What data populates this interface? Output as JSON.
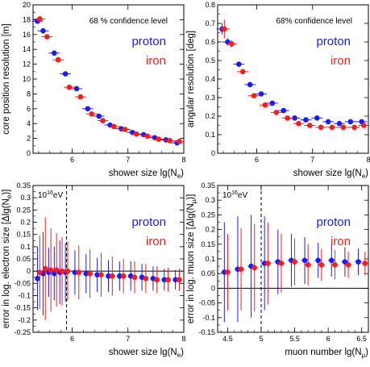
{
  "chart_data": [
    {
      "type": "scatter",
      "annotation": "68 % confidence level",
      "xlabel": "shower size  lg(N",
      "xlabel_sub": "e",
      "xlabel_close": ")",
      "ylabel": "core position resolution  [m]",
      "xlim": [
        5.3,
        8.0
      ],
      "ylim": [
        0,
        20
      ],
      "xticks": [
        6,
        7,
        8
      ],
      "xtick_labels": [
        "6",
        "7",
        "8"
      ],
      "yticks": [
        0,
        2,
        4,
        6,
        8,
        10,
        12,
        14,
        16,
        18,
        20
      ],
      "ytick_labels": [
        "0",
        "2",
        "4",
        "6",
        "8",
        "10",
        "12",
        "14",
        "16",
        "18",
        "20"
      ],
      "grid": false,
      "legend_position": "top-right",
      "series": [
        {
          "name": "proton",
          "color": "#1a1aff",
          "points": [
            {
              "x": 5.38,
              "y": 17.8,
              "xerr": 0.1,
              "yerr": 0
            },
            {
              "x": 5.48,
              "y": 16.5,
              "xerr": 0.1,
              "yerr": 0
            },
            {
              "x": 5.68,
              "y": 13.5,
              "xerr": 0.1,
              "yerr": 0
            },
            {
              "x": 5.88,
              "y": 10.7,
              "xerr": 0.1,
              "yerr": 0
            },
            {
              "x": 6.08,
              "y": 8.7,
              "xerr": 0.1,
              "yerr": 0
            },
            {
              "x": 6.28,
              "y": 6.0,
              "xerr": 0.1,
              "yerr": 0
            },
            {
              "x": 6.48,
              "y": 5.0,
              "xerr": 0.1,
              "yerr": 0
            },
            {
              "x": 6.68,
              "y": 3.8,
              "xerr": 0.1,
              "yerr": 0
            },
            {
              "x": 6.88,
              "y": 3.3,
              "xerr": 0.1,
              "yerr": 0
            },
            {
              "x": 7.08,
              "y": 2.8,
              "xerr": 0.1,
              "yerr": 0
            },
            {
              "x": 7.28,
              "y": 2.5,
              "xerr": 0.1,
              "yerr": 0
            },
            {
              "x": 7.48,
              "y": 2.1,
              "xerr": 0.1,
              "yerr": 0
            },
            {
              "x": 7.68,
              "y": 1.8,
              "xerr": 0.1,
              "yerr": 0
            },
            {
              "x": 7.88,
              "y": 1.4,
              "xerr": 0.1,
              "yerr": 0
            }
          ]
        },
        {
          "name": "iron",
          "color": "#ff1a1a",
          "points": [
            {
              "x": 5.42,
              "y": 18.1,
              "xerr": 0.1,
              "yerr": 0.3
            },
            {
              "x": 5.55,
              "y": 15.7,
              "xerr": 0.1,
              "yerr": 0
            },
            {
              "x": 5.75,
              "y": 12.6,
              "xerr": 0.1,
              "yerr": 0
            },
            {
              "x": 5.95,
              "y": 8.9,
              "xerr": 0.1,
              "yerr": 0
            },
            {
              "x": 6.15,
              "y": 7.6,
              "xerr": 0.1,
              "yerr": 0
            },
            {
              "x": 6.35,
              "y": 5.3,
              "xerr": 0.1,
              "yerr": 0
            },
            {
              "x": 6.55,
              "y": 4.4,
              "xerr": 0.1,
              "yerr": 0
            },
            {
              "x": 6.75,
              "y": 3.6,
              "xerr": 0.1,
              "yerr": 0
            },
            {
              "x": 6.95,
              "y": 3.2,
              "xerr": 0.1,
              "yerr": 0
            },
            {
              "x": 7.15,
              "y": 2.6,
              "xerr": 0.1,
              "yerr": 0
            },
            {
              "x": 7.35,
              "y": 2.3,
              "xerr": 0.1,
              "yerr": 0
            },
            {
              "x": 7.55,
              "y": 1.9,
              "xerr": 0.1,
              "yerr": 0
            },
            {
              "x": 7.75,
              "y": 1.7,
              "xerr": 0.1,
              "yerr": 0
            },
            {
              "x": 7.92,
              "y": 1.6,
              "xerr": 0.1,
              "yerr": 0
            }
          ]
        }
      ]
    },
    {
      "type": "scatter",
      "annotation": "68% confidence level",
      "xlabel": "shower size  lg(N",
      "xlabel_sub": "e",
      "xlabel_close": ")",
      "ylabel": "angular resolution  [deg]",
      "xlim": [
        5.3,
        8.0
      ],
      "ylim": [
        0,
        0.8
      ],
      "xticks": [
        6,
        7,
        8
      ],
      "xtick_labels": [
        "6",
        "7",
        "8"
      ],
      "yticks": [
        0,
        0.1,
        0.2,
        0.3,
        0.4,
        0.5,
        0.6,
        0.7,
        0.8
      ],
      "ytick_labels": [
        "0",
        "0.1",
        "0.2",
        "0.3",
        "0.4",
        "0.5",
        "0.6",
        "0.7",
        "0.8"
      ],
      "grid": false,
      "legend_position": "top-right",
      "series": [
        {
          "name": "proton",
          "color": "#1a1aff",
          "points": [
            {
              "x": 5.38,
              "y": 0.67,
              "xerr": 0.1,
              "yerr": 0.03
            },
            {
              "x": 5.48,
              "y": 0.6,
              "xerr": 0.1,
              "yerr": 0.02
            },
            {
              "x": 5.68,
              "y": 0.48,
              "xerr": 0.1,
              "yerr": 0
            },
            {
              "x": 5.88,
              "y": 0.37,
              "xerr": 0.1,
              "yerr": 0
            },
            {
              "x": 6.08,
              "y": 0.32,
              "xerr": 0.1,
              "yerr": 0
            },
            {
              "x": 6.28,
              "y": 0.27,
              "xerr": 0.1,
              "yerr": 0
            },
            {
              "x": 6.48,
              "y": 0.23,
              "xerr": 0.1,
              "yerr": 0
            },
            {
              "x": 6.68,
              "y": 0.19,
              "xerr": 0.1,
              "yerr": 0
            },
            {
              "x": 6.88,
              "y": 0.18,
              "xerr": 0.1,
              "yerr": 0
            },
            {
              "x": 7.08,
              "y": 0.19,
              "xerr": 0.1,
              "yerr": 0
            },
            {
              "x": 7.28,
              "y": 0.17,
              "xerr": 0.1,
              "yerr": 0
            },
            {
              "x": 7.48,
              "y": 0.16,
              "xerr": 0.1,
              "yerr": 0
            },
            {
              "x": 7.68,
              "y": 0.17,
              "xerr": 0.1,
              "yerr": 0
            },
            {
              "x": 7.88,
              "y": 0.17,
              "xerr": 0.1,
              "yerr": 0
            }
          ]
        },
        {
          "name": "iron",
          "color": "#ff1a1a",
          "points": [
            {
              "x": 5.42,
              "y": 0.67,
              "xerr": 0.1,
              "yerr": 0.05
            },
            {
              "x": 5.55,
              "y": 0.59,
              "xerr": 0.1,
              "yerr": 0.02
            },
            {
              "x": 5.75,
              "y": 0.44,
              "xerr": 0.1,
              "yerr": 0
            },
            {
              "x": 5.95,
              "y": 0.31,
              "xerr": 0.1,
              "yerr": 0
            },
            {
              "x": 6.15,
              "y": 0.26,
              "xerr": 0.1,
              "yerr": 0
            },
            {
              "x": 6.35,
              "y": 0.22,
              "xerr": 0.1,
              "yerr": 0
            },
            {
              "x": 6.55,
              "y": 0.19,
              "xerr": 0.1,
              "yerr": 0
            },
            {
              "x": 6.75,
              "y": 0.16,
              "xerr": 0.1,
              "yerr": 0
            },
            {
              "x": 6.95,
              "y": 0.15,
              "xerr": 0.1,
              "yerr": 0
            },
            {
              "x": 7.15,
              "y": 0.14,
              "xerr": 0.1,
              "yerr": 0
            },
            {
              "x": 7.35,
              "y": 0.14,
              "xerr": 0.1,
              "yerr": 0
            },
            {
              "x": 7.55,
              "y": 0.14,
              "xerr": 0.1,
              "yerr": 0
            },
            {
              "x": 7.75,
              "y": 0.14,
              "xerr": 0.1,
              "yerr": 0
            },
            {
              "x": 7.92,
              "y": 0.15,
              "xerr": 0.1,
              "yerr": 0
            }
          ]
        }
      ]
    },
    {
      "type": "scatter",
      "annotation_base": "10",
      "annotation_exp": "16",
      "annotation_unit": "eV",
      "marker_x": 5.9,
      "xlabel": "shower size  lg(N",
      "xlabel_sub": "e",
      "xlabel_close": ")",
      "ylabel": "error in log. electron size  [Δlg(N",
      "ylabel_sub": "e",
      "ylabel_close": ")]",
      "xlim": [
        5.3,
        8.0
      ],
      "ylim": [
        -0.25,
        0.35
      ],
      "xticks": [
        6,
        7,
        8
      ],
      "xtick_labels": [
        "6",
        "7",
        "8"
      ],
      "yticks": [
        -0.25,
        -0.2,
        -0.15,
        -0.1,
        -0.05,
        0,
        0.05,
        0.1,
        0.15,
        0.2,
        0.25,
        0.3,
        0.35
      ],
      "ytick_labels": [
        "-0.25",
        "-0.2",
        "-0.15",
        "-0.1",
        "-0.05",
        "0",
        "0.05",
        "0.1",
        "0.15",
        "0.2",
        "0.25",
        "0.3",
        "0.35"
      ],
      "grid": false,
      "legend_position": "top-right",
      "series": [
        {
          "name": "proton",
          "color": "#1a1aff",
          "points": [
            {
              "x": 5.38,
              "y": -0.03,
              "xerr": 0.05,
              "yerr": 0.13
            },
            {
              "x": 5.48,
              "y": -0.01,
              "xerr": 0.05,
              "yerr": 0.17
            },
            {
              "x": 5.58,
              "y": -0.005,
              "xerr": 0.05,
              "yerr": 0.1
            },
            {
              "x": 5.68,
              "y": -0.01,
              "xerr": 0.05,
              "yerr": 0.11
            },
            {
              "x": 5.78,
              "y": -0.005,
              "xerr": 0.05,
              "yerr": 0.13
            },
            {
              "x": 5.88,
              "y": -0.005,
              "xerr": 0.05,
              "yerr": 0.12
            },
            {
              "x": 6.05,
              "y": -0.005,
              "xerr": 0.05,
              "yerr": 0.09
            },
            {
              "x": 6.25,
              "y": -0.01,
              "xerr": 0.05,
              "yerr": 0.08
            },
            {
              "x": 6.45,
              "y": -0.015,
              "xerr": 0.05,
              "yerr": 0.07
            },
            {
              "x": 6.65,
              "y": -0.02,
              "xerr": 0.05,
              "yerr": 0.065
            },
            {
              "x": 6.85,
              "y": -0.02,
              "xerr": 0.05,
              "yerr": 0.06
            },
            {
              "x": 7.05,
              "y": -0.02,
              "xerr": 0.05,
              "yerr": 0.06
            },
            {
              "x": 7.25,
              "y": -0.025,
              "xerr": 0.05,
              "yerr": 0.055
            },
            {
              "x": 7.45,
              "y": -0.03,
              "xerr": 0.05,
              "yerr": 0.05
            },
            {
              "x": 7.65,
              "y": -0.035,
              "xerr": 0.05,
              "yerr": 0.045
            },
            {
              "x": 7.85,
              "y": -0.035,
              "xerr": 0.05,
              "yerr": 0.04
            }
          ]
        },
        {
          "name": "iron",
          "color": "#ff1a1a",
          "points": [
            {
              "x": 5.42,
              "y": -0.005,
              "xerr": 0.05,
              "yerr": 0.15
            },
            {
              "x": 5.52,
              "y": 0.01,
              "xerr": 0.05,
              "yerr": 0.21
            },
            {
              "x": 5.62,
              "y": 0.005,
              "xerr": 0.05,
              "yerr": 0.17
            },
            {
              "x": 5.72,
              "y": 0.005,
              "xerr": 0.05,
              "yerr": 0.15
            },
            {
              "x": 5.82,
              "y": 0.0,
              "xerr": 0.05,
              "yerr": 0.14
            },
            {
              "x": 5.92,
              "y": 0.0,
              "xerr": 0.05,
              "yerr": 0.12
            },
            {
              "x": 6.12,
              "y": -0.005,
              "xerr": 0.05,
              "yerr": 0.11
            },
            {
              "x": 6.32,
              "y": -0.01,
              "xerr": 0.05,
              "yerr": 0.1
            },
            {
              "x": 6.52,
              "y": -0.015,
              "xerr": 0.05,
              "yerr": 0.09
            },
            {
              "x": 6.72,
              "y": -0.02,
              "xerr": 0.05,
              "yerr": 0.08
            },
            {
              "x": 6.92,
              "y": -0.02,
              "xerr": 0.05,
              "yerr": 0.07
            },
            {
              "x": 7.12,
              "y": -0.025,
              "xerr": 0.05,
              "yerr": 0.065
            },
            {
              "x": 7.32,
              "y": -0.03,
              "xerr": 0.05,
              "yerr": 0.06
            },
            {
              "x": 7.52,
              "y": -0.035,
              "xerr": 0.05,
              "yerr": 0.055
            },
            {
              "x": 7.72,
              "y": -0.035,
              "xerr": 0.05,
              "yerr": 0.05
            },
            {
              "x": 7.92,
              "y": -0.035,
              "xerr": 0.05,
              "yerr": 0.045
            }
          ]
        }
      ]
    },
    {
      "type": "scatter",
      "annotation_base": "10",
      "annotation_exp": "16",
      "annotation_unit": "eV",
      "marker_x": 5.0,
      "xlabel": "muon number  lg(N",
      "xlabel_sub": "μ",
      "xlabel_close": ")",
      "ylabel": "error in log. muon size  [Δlg(N",
      "ylabel_sub": "μ",
      "ylabel_close": ")]",
      "xlim": [
        4.35,
        6.6
      ],
      "ylim": [
        -0.15,
        0.35
      ],
      "xticks": [
        4.5,
        5,
        5.5,
        6,
        6.5
      ],
      "xtick_labels": [
        "4.5",
        "5",
        "5.5",
        "6",
        "6.5"
      ],
      "yticks": [
        -0.15,
        -0.1,
        -0.05,
        0,
        0.05,
        0.1,
        0.15,
        0.2,
        0.25,
        0.3,
        0.35
      ],
      "ytick_labels": [
        "-0.15",
        "-0.1",
        "-0.05",
        "0",
        "0.05",
        "0.1",
        "0.15",
        "0.2",
        "0.25",
        "0.3",
        "0.35"
      ],
      "grid": false,
      "legend_position": "top-right",
      "series": [
        {
          "name": "proton",
          "color": "#1a1aff",
          "points": [
            {
              "x": 4.45,
              "y": 0.055,
              "xerr": 0.05,
              "yerr": 0.17
            },
            {
              "x": 4.65,
              "y": 0.065,
              "xerr": 0.05,
              "yerr": 0.18
            },
            {
              "x": 4.85,
              "y": 0.075,
              "xerr": 0.05,
              "yerr": 0.175
            },
            {
              "x": 5.05,
              "y": 0.085,
              "xerr": 0.05,
              "yerr": 0.16
            },
            {
              "x": 5.25,
              "y": 0.09,
              "xerr": 0.05,
              "yerr": 0.11
            },
            {
              "x": 5.45,
              "y": 0.095,
              "xerr": 0.05,
              "yerr": 0.09
            },
            {
              "x": 5.65,
              "y": 0.095,
              "xerr": 0.05,
              "yerr": 0.08
            },
            {
              "x": 5.85,
              "y": 0.095,
              "xerr": 0.05,
              "yerr": 0.06
            },
            {
              "x": 6.05,
              "y": 0.095,
              "xerr": 0.05,
              "yerr": 0.055
            },
            {
              "x": 6.25,
              "y": 0.09,
              "xerr": 0.05,
              "yerr": 0.05
            },
            {
              "x": 6.45,
              "y": 0.09,
              "xerr": 0.05,
              "yerr": 0.045
            }
          ]
        },
        {
          "name": "iron",
          "color": "#ff1a1a",
          "points": [
            {
              "x": 4.5,
              "y": 0.055,
              "xerr": 0.05,
              "yerr": 0.13
            },
            {
              "x": 4.7,
              "y": 0.065,
              "xerr": 0.05,
              "yerr": 0.14
            },
            {
              "x": 4.9,
              "y": 0.07,
              "xerr": 0.05,
              "yerr": 0.15
            },
            {
              "x": 5.1,
              "y": 0.085,
              "xerr": 0.05,
              "yerr": 0.14
            },
            {
              "x": 5.3,
              "y": 0.085,
              "xerr": 0.05,
              "yerr": 0.1
            },
            {
              "x": 5.5,
              "y": 0.09,
              "xerr": 0.05,
              "yerr": 0.08
            },
            {
              "x": 5.7,
              "y": 0.08,
              "xerr": 0.05,
              "yerr": 0.07
            },
            {
              "x": 5.9,
              "y": 0.08,
              "xerr": 0.05,
              "yerr": 0.055
            },
            {
              "x": 6.1,
              "y": 0.08,
              "xerr": 0.05,
              "yerr": 0.05
            },
            {
              "x": 6.3,
              "y": 0.08,
              "xerr": 0.05,
              "yerr": 0.045
            },
            {
              "x": 6.55,
              "y": 0.085,
              "xerr": 0.05,
              "yerr": 0.04
            }
          ]
        }
      ]
    }
  ]
}
